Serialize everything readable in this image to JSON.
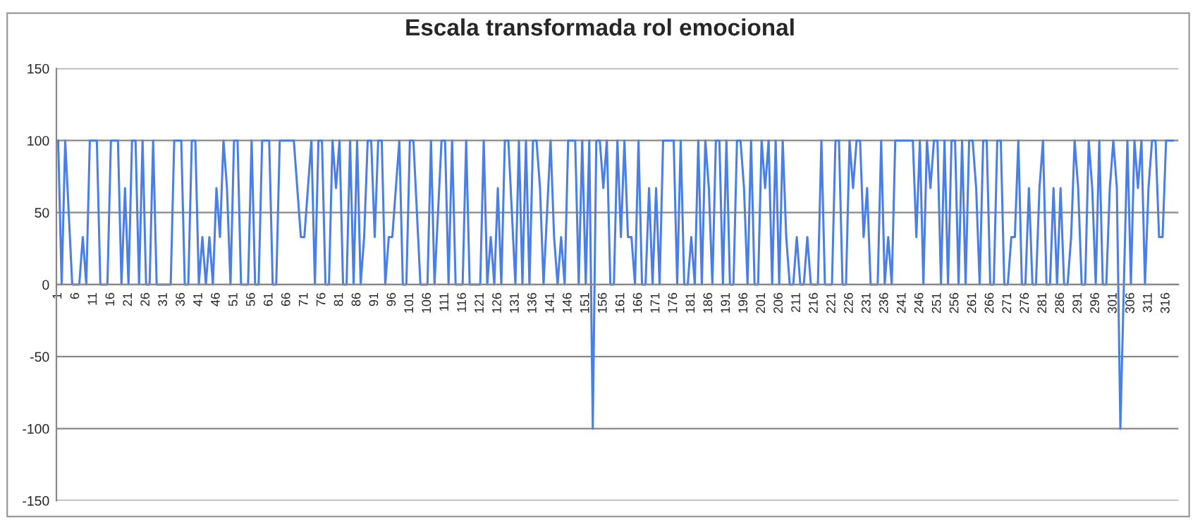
{
  "chart_data": {
    "type": "line",
    "title": "Escala transformada rol emocional",
    "xlim": [
      0.5,
      319.5
    ],
    "xticks": [
      1,
      6,
      11,
      16,
      21,
      26,
      31,
      36,
      41,
      46,
      51,
      56,
      61,
      66,
      71,
      76,
      81,
      86,
      91,
      96,
      101,
      106,
      111,
      116,
      121,
      126,
      131,
      136,
      141,
      146,
      151,
      156,
      161,
      166,
      171,
      176,
      181,
      186,
      191,
      196,
      201,
      206,
      211,
      216,
      221,
      226,
      231,
      236,
      241,
      246,
      251,
      256,
      261,
      266,
      271,
      276,
      281,
      286,
      291,
      296,
      301,
      306,
      311,
      316
    ],
    "ylim": [
      -150,
      150
    ],
    "yticks": [
      -150,
      -100,
      -50,
      0,
      50,
      100,
      150
    ],
    "grid": "y",
    "marker": "none",
    "line_style": "solid",
    "series": [
      {
        "color": "#4a7fe8",
        "x": [
          1,
          2,
          3,
          5,
          7,
          8,
          9,
          10,
          12,
          13,
          15,
          16,
          18,
          19,
          20,
          21,
          22,
          23,
          24,
          25,
          26,
          27,
          28,
          29,
          33,
          34,
          36,
          37,
          38,
          39,
          40,
          41,
          42,
          43,
          44,
          45,
          46,
          47,
          48,
          49,
          50,
          51,
          52,
          53,
          55,
          56,
          57,
          58,
          59,
          61,
          62,
          63,
          64,
          68,
          70,
          71,
          73,
          74,
          75,
          76,
          77,
          78,
          79,
          80,
          81,
          82,
          83,
          84,
          85,
          86,
          87,
          88,
          89,
          90,
          91,
          92,
          93,
          94,
          95,
          96,
          98,
          99,
          100,
          101,
          102,
          104,
          106,
          107,
          108,
          110,
          111,
          112,
          113,
          114,
          116,
          117,
          118,
          121,
          122,
          123,
          124,
          125,
          126,
          127,
          128,
          129,
          131,
          132,
          133,
          134,
          135,
          136,
          137,
          138,
          139,
          141,
          142,
          143,
          144,
          145,
          146,
          148,
          149,
          150,
          151,
          152,
          153,
          154,
          155,
          156,
          157,
          158,
          159,
          160,
          161,
          162,
          163,
          164,
          165,
          166,
          167,
          168,
          169,
          170,
          171,
          172,
          173,
          176,
          177,
          178,
          179,
          180,
          181,
          182,
          183,
          184,
          185,
          186,
          187,
          188,
          189,
          190,
          191,
          192,
          193,
          194,
          195,
          196,
          197,
          198,
          199,
          200,
          201,
          202,
          203,
          204,
          205,
          206,
          207,
          208,
          209,
          210,
          211,
          212,
          213,
          214,
          215,
          217,
          218,
          219,
          221,
          222,
          223,
          224,
          225,
          226,
          227,
          228,
          229,
          230,
          231,
          232,
          234,
          235,
          236,
          237,
          238,
          239,
          240,
          244,
          245,
          246,
          247,
          248,
          249,
          250,
          251,
          252,
          253,
          254,
          255,
          256,
          257,
          258,
          259,
          260,
          261,
          262,
          263,
          264,
          265,
          266,
          267,
          268,
          269,
          270,
          271,
          272,
          273,
          274,
          275,
          276,
          277,
          278,
          279,
          280,
          281,
          282,
          283,
          284,
          285,
          286,
          287,
          288,
          289,
          290,
          291,
          292,
          293,
          294,
          295,
          296,
          297,
          298,
          299,
          300,
          301,
          302,
          303,
          304,
          305,
          306,
          307,
          308,
          309,
          310,
          311,
          312,
          313,
          314,
          315,
          316,
          318
        ],
        "values": [
          100,
          0,
          100,
          0,
          0,
          33,
          0,
          100,
          100,
          0,
          0,
          100,
          100,
          0,
          67,
          0,
          100,
          100,
          0,
          100,
          0,
          0,
          100,
          0,
          0,
          100,
          100,
          0,
          0,
          100,
          100,
          0,
          33,
          0,
          33,
          0,
          67,
          33,
          100,
          67,
          0,
          100,
          100,
          0,
          0,
          100,
          0,
          0,
          100,
          100,
          0,
          0,
          100,
          100,
          33,
          33,
          100,
          0,
          100,
          100,
          0,
          0,
          100,
          67,
          100,
          0,
          0,
          100,
          0,
          100,
          0,
          33,
          100,
          100,
          33,
          100,
          100,
          0,
          33,
          33,
          100,
          0,
          0,
          100,
          100,
          0,
          0,
          100,
          0,
          100,
          100,
          0,
          100,
          0,
          0,
          100,
          0,
          0,
          100,
          0,
          33,
          0,
          67,
          0,
          100,
          100,
          0,
          100,
          0,
          100,
          0,
          100,
          100,
          67,
          0,
          100,
          33,
          0,
          33,
          0,
          100,
          100,
          0,
          100,
          0,
          100,
          -100,
          100,
          100,
          67,
          100,
          0,
          0,
          100,
          33,
          100,
          33,
          33,
          0,
          100,
          0,
          0,
          67,
          0,
          67,
          0,
          100,
          100,
          0,
          100,
          0,
          0,
          33,
          0,
          100,
          0,
          100,
          67,
          0,
          100,
          100,
          0,
          100,
          0,
          0,
          100,
          100,
          67,
          0,
          100,
          0,
          0,
          100,
          67,
          100,
          0,
          100,
          0,
          100,
          33,
          0,
          0,
          33,
          0,
          0,
          33,
          0,
          0,
          100,
          0,
          0,
          100,
          100,
          0,
          0,
          100,
          67,
          100,
          100,
          33,
          67,
          0,
          0,
          100,
          0,
          33,
          0,
          100,
          100,
          100,
          33,
          100,
          0,
          100,
          67,
          100,
          100,
          0,
          100,
          0,
          100,
          100,
          0,
          100,
          0,
          100,
          100,
          67,
          0,
          100,
          100,
          0,
          0,
          100,
          100,
          0,
          0,
          33,
          33,
          100,
          0,
          0,
          67,
          0,
          0,
          67,
          100,
          0,
          0,
          67,
          0,
          67,
          0,
          0,
          33,
          100,
          67,
          0,
          0,
          100,
          67,
          0,
          100,
          0,
          0,
          67,
          100,
          67,
          -100,
          0,
          100,
          0,
          100,
          67,
          100,
          0,
          67,
          100,
          100,
          33,
          33,
          100,
          100
        ]
      }
    ]
  }
}
